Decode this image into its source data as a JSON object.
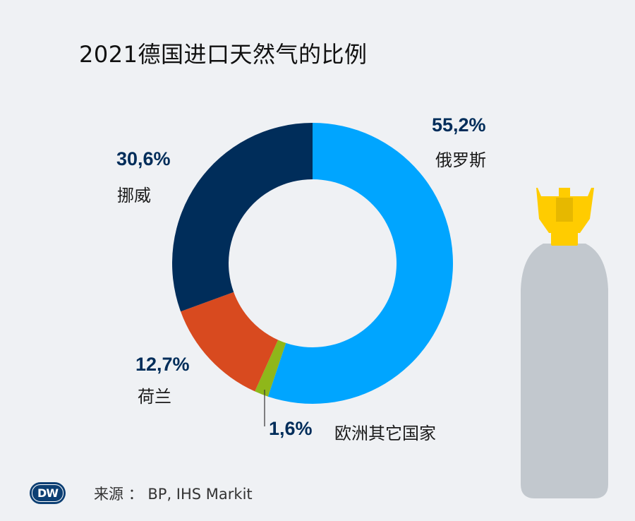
{
  "title": "2021德国进口天然气的比例",
  "chart_data": {
    "type": "pie",
    "style": "donut",
    "title": "2021德国进口天然气的比例",
    "unit": "%",
    "slices": [
      {
        "label": "俄罗斯",
        "value": 55.2,
        "value_text": "55,2%",
        "color": "#00a5ff"
      },
      {
        "label": "欧洲其它国家",
        "value": 1.6,
        "value_text": "1,6%",
        "color": "#8fb71a"
      },
      {
        "label": "荷兰",
        "value": 12.7,
        "value_text": "12,7%",
        "color": "#d84a1f"
      },
      {
        "label": "挪威",
        "value": 30.6,
        "value_text": "30,6%",
        "color": "#002d5a"
      }
    ]
  },
  "source": {
    "label": "来源",
    "separator": "：",
    "text": "BP, IHS Markit"
  },
  "logo": {
    "text": "DW"
  },
  "illustration": {
    "name": "gas-cylinder-icon",
    "body_color": "#c2c8ce",
    "valve_color": "#ffcc00"
  }
}
